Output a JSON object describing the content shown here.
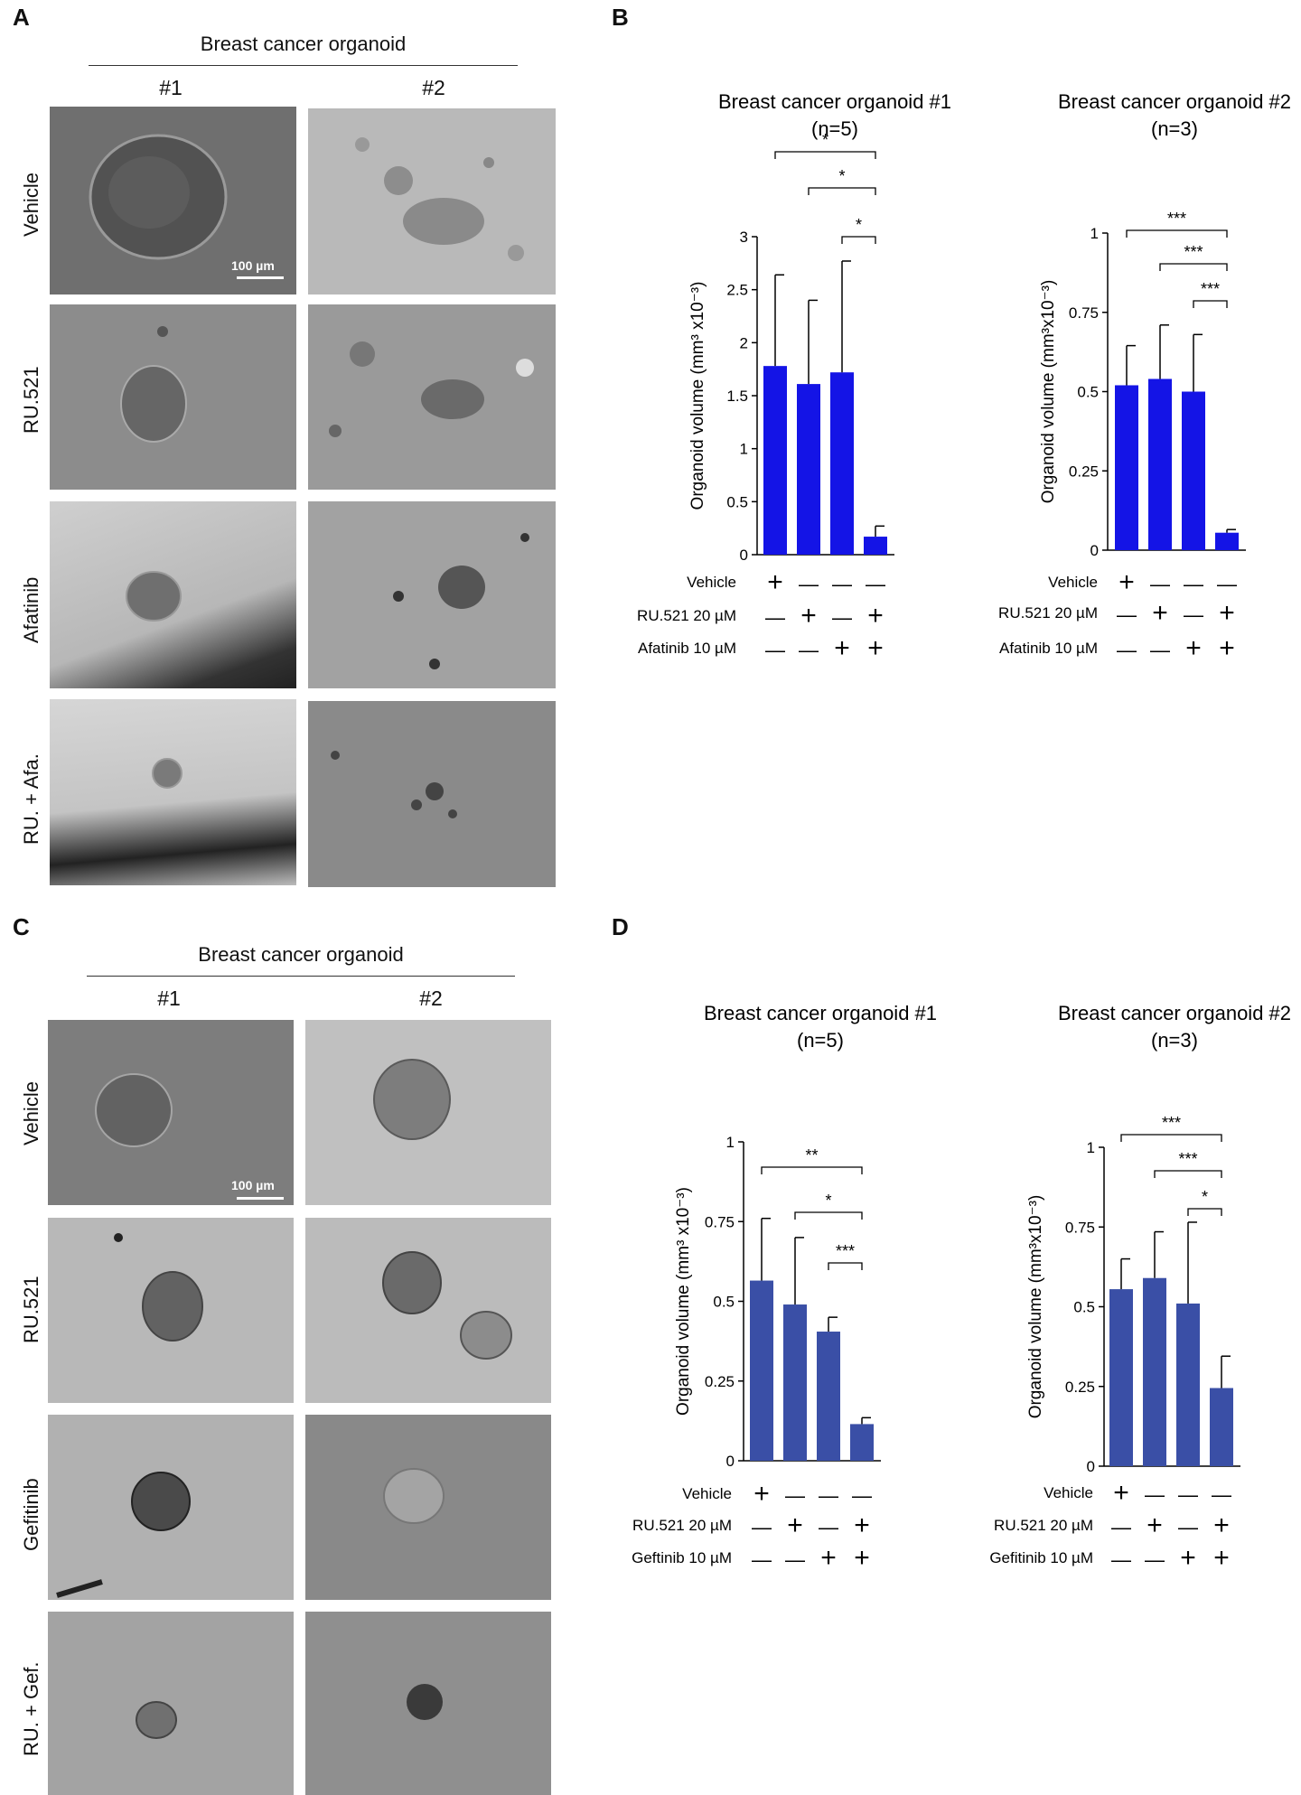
{
  "figure": {
    "panelA": {
      "letter": "A",
      "header": "Breast cancer organoid",
      "columns": [
        "#1",
        "#2"
      ],
      "rows": [
        "Vehicle",
        "RU.521",
        "Afatinib",
        "RU. + Afa."
      ],
      "scale_label": "100 µm"
    },
    "panelB": {
      "letter": "B"
    },
    "panelC": {
      "letter": "C",
      "header": "Breast cancer organoid",
      "columns": [
        "#1",
        "#2"
      ],
      "rows": [
        "Vehicle",
        "RU.521",
        "Gefitinib",
        "RU. + Gef."
      ],
      "scale_label": "100 µm"
    },
    "panelD": {
      "letter": "D"
    }
  },
  "colors": {
    "bar_B": "#1414e6",
    "bar_D": "#3a4fa6"
  },
  "chart_data": [
    {
      "id": "B1",
      "type": "bar",
      "title": "Breast cancer organoid #1",
      "subtitle": "(n=5)",
      "ylabel": "Organoid volume (mm³ x10⁻³)",
      "ylim": [
        0,
        3
      ],
      "yticks": [
        "0",
        "0.5",
        "1",
        "1.5",
        "2",
        "2.5",
        "3"
      ],
      "ytick_values": [
        0,
        0.5,
        1,
        1.5,
        2,
        2.5,
        3
      ],
      "values": [
        1.78,
        1.61,
        1.72,
        0.17
      ],
      "errors": [
        0.86,
        0.79,
        1.05,
        0.1
      ],
      "significance": [
        [
          "*",
          0,
          3
        ],
        [
          "*",
          1,
          3
        ],
        [
          "*",
          2,
          3
        ]
      ],
      "conditions": [
        {
          "label": "Vehicle",
          "marks": [
            "+",
            "—",
            "—",
            "—"
          ]
        },
        {
          "label": "RU.521 20 µM",
          "marks": [
            "—",
            "+",
            "—",
            "+"
          ]
        },
        {
          "label": "Afatinib 10 µM",
          "marks": [
            "—",
            "—",
            "+",
            "+"
          ]
        }
      ],
      "color": "#1414e6"
    },
    {
      "id": "B2",
      "type": "bar",
      "title": "Breast cancer organoid #2",
      "subtitle": "(n=3)",
      "ylabel": "Organoid volume (mm³x10⁻³)",
      "ylim": [
        0,
        1
      ],
      "yticks": [
        "0",
        "0.25",
        "0.5",
        "0.75",
        "1"
      ],
      "ytick_values": [
        0,
        0.25,
        0.5,
        0.75,
        1
      ],
      "values": [
        0.52,
        0.54,
        0.5,
        0.055
      ],
      "errors": [
        0.125,
        0.17,
        0.18,
        0.01
      ],
      "significance": [
        [
          "***",
          0,
          3
        ],
        [
          "***",
          1,
          3
        ],
        [
          "***",
          2,
          3
        ]
      ],
      "conditions": [
        {
          "label": "Vehicle",
          "marks": [
            "+",
            "—",
            "—",
            "—"
          ]
        },
        {
          "label": "RU.521 20 µM",
          "marks": [
            "—",
            "+",
            "—",
            "+"
          ]
        },
        {
          "label": "Afatinib 10 µM",
          "marks": [
            "—",
            "—",
            "+",
            "+"
          ]
        }
      ],
      "color": "#1414e6"
    },
    {
      "id": "D1",
      "type": "bar",
      "title": "Breast cancer organoid #1",
      "subtitle": "(n=5)",
      "ylabel": "Organoid volume (mm³ x10⁻³)",
      "ylim": [
        0,
        1
      ],
      "yticks": [
        "0",
        "0.25",
        "0.5",
        "0.75",
        "1"
      ],
      "ytick_values": [
        0,
        0.25,
        0.5,
        0.75,
        1
      ],
      "values": [
        0.565,
        0.49,
        0.405,
        0.115
      ],
      "errors": [
        0.195,
        0.21,
        0.045,
        0.02
      ],
      "significance": [
        [
          "**",
          0,
          3
        ],
        [
          "*",
          1,
          3
        ],
        [
          "***",
          2,
          3
        ]
      ],
      "conditions": [
        {
          "label": "Vehicle",
          "marks": [
            "+",
            "—",
            "—",
            "—"
          ]
        },
        {
          "label": "RU.521 20 µM",
          "marks": [
            "—",
            "+",
            "—",
            "+"
          ]
        },
        {
          "label": "Geftinib 10 µM",
          "marks": [
            "—",
            "—",
            "+",
            "+"
          ]
        }
      ],
      "color": "#3a4fa6"
    },
    {
      "id": "D2",
      "type": "bar",
      "title": "Breast cancer organoid #2",
      "subtitle": "(n=3)",
      "ylabel": "Organoid volume (mm³x10⁻³)",
      "ylim": [
        0,
        1
      ],
      "yticks": [
        "0",
        "0.25",
        "0.5",
        "0.75",
        "1"
      ],
      "ytick_values": [
        0,
        0.25,
        0.5,
        0.75,
        1
      ],
      "values": [
        0.555,
        0.59,
        0.51,
        0.245
      ],
      "errors": [
        0.095,
        0.145,
        0.255,
        0.1
      ],
      "significance": [
        [
          "***",
          0,
          3
        ],
        [
          "***",
          1,
          3
        ],
        [
          "*",
          2,
          3
        ]
      ],
      "conditions": [
        {
          "label": "Vehicle",
          "marks": [
            "+",
            "—",
            "—",
            "—"
          ]
        },
        {
          "label": "RU.521 20 µM",
          "marks": [
            "—",
            "+",
            "—",
            "+"
          ]
        },
        {
          "label": "Gefitinib 10 µM",
          "marks": [
            "—",
            "—",
            "+",
            "+"
          ]
        }
      ],
      "color": "#3a4fa6"
    }
  ]
}
